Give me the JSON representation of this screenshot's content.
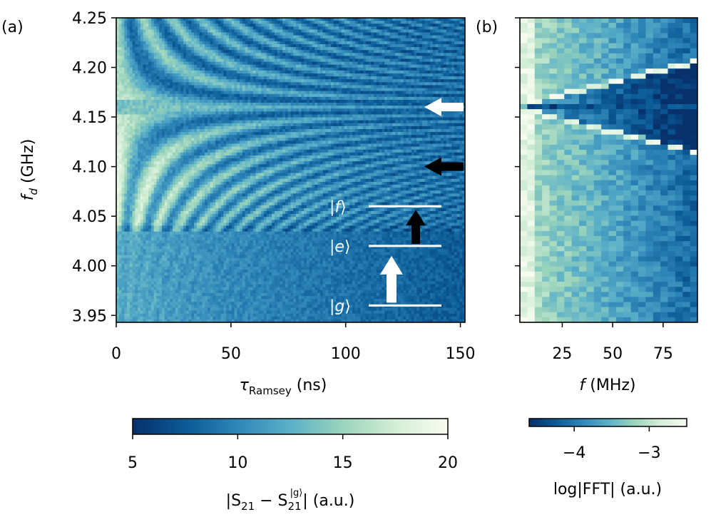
{
  "figure": {
    "panel_a_label": "(a)",
    "panel_b_label": "(b)"
  },
  "chart_data": [
    {
      "panel": "(a)",
      "type": "heatmap",
      "title": "",
      "xlabel": "τ",
      "xlabel_sub": "Ramsey",
      "xlabel_unit": "(ns)",
      "ylabel": "f",
      "ylabel_sub": "d",
      "ylabel_unit": "(GHz)",
      "xlim": [
        0,
        152
      ],
      "ylim": [
        3.943,
        4.25
      ],
      "x_ticks": [
        0,
        50,
        100,
        150
      ],
      "x_tick_labels": [
        "0",
        "50",
        "100",
        "150"
      ],
      "y_ticks": [
        3.95,
        4.0,
        4.05,
        4.1,
        4.15,
        4.2,
        4.25
      ],
      "y_tick_labels": [
        "3.95",
        "4.00",
        "4.05",
        "4.10",
        "4.15",
        "4.20",
        "4.25"
      ],
      "z_label": "|S21 − S21^|g⟩|  (a.u.)",
      "z_range": [
        5,
        20
      ],
      "resonance_ghz": 4.16,
      "annotations": {
        "levels": [
          {
            "name": "|g⟩",
            "ket": "g",
            "f": 3.96
          },
          {
            "name": "|e⟩",
            "ket": "e",
            "f": 4.02
          },
          {
            "name": "|f⟩",
            "ket": "f",
            "f": 4.06
          }
        ],
        "arrows": [
          {
            "type": "transition",
            "color": "white",
            "from": 3.96,
            "to": 4.02
          },
          {
            "type": "transition",
            "color": "black",
            "from": 4.02,
            "to": 4.06
          },
          {
            "type": "marker",
            "color": "white",
            "f": 4.16
          },
          {
            "type": "marker",
            "color": "black",
            "f": 4.1
          }
        ]
      }
    },
    {
      "panel": "(b)",
      "type": "heatmap",
      "title": "",
      "xlabel": "f",
      "xlabel_unit": "(MHz)",
      "xlim": [
        4,
        92
      ],
      "ylim": [
        3.943,
        4.25
      ],
      "x_ticks": [
        25,
        50,
        75
      ],
      "x_tick_labels": [
        "25",
        "50",
        "75"
      ],
      "y_ticks": [
        3.95,
        4.0,
        4.05,
        4.1,
        4.15,
        4.2,
        4.25
      ],
      "z_label": "log|FFT|  (a.u.)",
      "z_range": [
        -4.6,
        -2.5
      ],
      "center_ghz": 4.16,
      "v_shape_note": "bright fringe f ≈ 2·|f_d − 4.16 GHz| for f_d > 4.04 GHz"
    }
  ],
  "colorbars": {
    "main": {
      "ticks": [
        5,
        10,
        15,
        20
      ],
      "tick_labels": [
        "5",
        "10",
        "15",
        "20"
      ],
      "label_pre": "|S",
      "label_sub1": "21",
      "label_mid": " − S",
      "label_sub2": "21",
      "label_sup": "|g⟩",
      "label_post": "|  (a.u.)"
    },
    "fft": {
      "ticks": [
        -4,
        -3
      ],
      "tick_labels": [
        "−4",
        "−3"
      ],
      "label": "log|FFT|  (a.u.)"
    }
  },
  "colors": {
    "cmap": [
      "#08306b",
      "#0a5a96",
      "#2f86b8",
      "#5bb0c8",
      "#9bd4bc",
      "#d4eed6",
      "#f7fcf0"
    ]
  }
}
